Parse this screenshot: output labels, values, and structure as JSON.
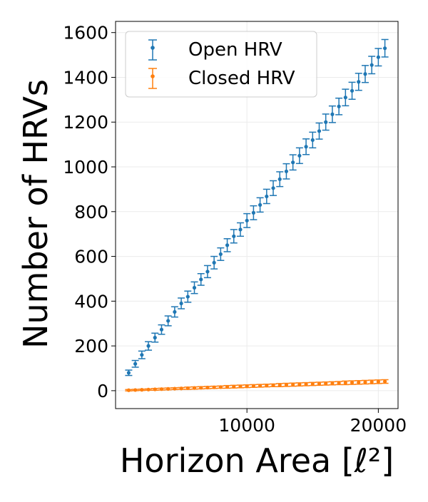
{
  "chart_data": {
    "type": "scatter",
    "xlabel": "Horizon Area [ℓ²]",
    "ylabel": "Number of HRVs",
    "xlim": [
      0,
      21500
    ],
    "ylim": [
      -80,
      1650
    ],
    "x_ticks": [
      10000,
      20000
    ],
    "x_tick_labels": [
      "10000",
      "20000"
    ],
    "y_ticks": [
      0,
      200,
      400,
      600,
      800,
      1000,
      1200,
      1400,
      1600
    ],
    "y_tick_labels": [
      "0",
      "200",
      "400",
      "600",
      "800",
      "1000",
      "1200",
      "1400",
      "1600"
    ],
    "grid": true,
    "legend_position": "upper-left",
    "x": [
      1000,
      1500,
      2000,
      2500,
      3000,
      3500,
      4000,
      4500,
      5000,
      5500,
      6000,
      6500,
      7000,
      7500,
      8000,
      8500,
      9000,
      9500,
      10000,
      10500,
      11000,
      11500,
      12000,
      12500,
      13000,
      13500,
      14000,
      14500,
      15000,
      15500,
      16000,
      16500,
      17000,
      17500,
      18000,
      18500,
      19000,
      19500,
      20000,
      20500
    ],
    "series": [
      {
        "name": "Open HRV",
        "color": "#1f77b4",
        "values": [
          80,
          120,
          160,
          200,
          237,
          273,
          312,
          352,
          390,
          420,
          460,
          497,
          532,
          572,
          610,
          650,
          690,
          720,
          760,
          795,
          830,
          868,
          905,
          945,
          980,
          1020,
          1050,
          1090,
          1120,
          1160,
          1200,
          1235,
          1270,
          1310,
          1340,
          1380,
          1415,
          1455,
          1490,
          1530
        ],
        "errors": [
          12,
          15,
          17,
          19,
          20,
          21,
          22,
          23,
          24,
          25,
          26,
          26,
          27,
          28,
          28,
          29,
          30,
          30,
          31,
          31,
          32,
          32,
          33,
          33,
          34,
          34,
          35,
          35,
          35,
          36,
          36,
          37,
          37,
          37,
          38,
          38,
          38,
          39,
          39,
          39
        ]
      },
      {
        "name": "Closed HRV",
        "color": "#ff7f0e",
        "values": [
          2,
          3,
          4,
          5,
          6,
          7,
          8,
          9,
          10,
          11,
          12,
          13,
          14,
          15,
          16,
          17,
          18,
          19,
          20,
          21,
          22,
          23,
          24,
          25,
          26,
          27,
          28,
          29,
          30,
          31,
          32,
          33,
          34,
          35,
          36,
          37,
          38,
          39,
          40,
          41
        ],
        "errors": [
          3,
          3,
          3,
          3,
          4,
          4,
          4,
          4,
          4,
          5,
          5,
          5,
          5,
          5,
          5,
          6,
          6,
          6,
          6,
          6,
          6,
          6,
          6,
          7,
          7,
          7,
          7,
          7,
          7,
          7,
          7,
          7,
          7,
          8,
          8,
          8,
          8,
          8,
          8,
          8
        ]
      }
    ]
  }
}
